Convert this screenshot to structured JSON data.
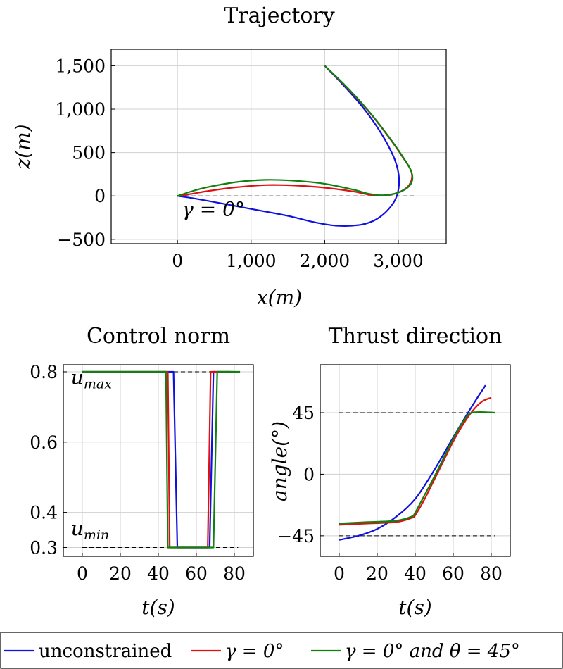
{
  "colors": {
    "unconstrained": "#1010e0",
    "gamma0": "#e01010",
    "gamma0_theta45": "#108010",
    "reference": "#000000"
  },
  "legend": {
    "placement": "bottom",
    "entries": [
      {
        "series": "unconstrained",
        "label": "unconstrained"
      },
      {
        "series": "gamma0",
        "label": "γ = 0°"
      },
      {
        "series": "gamma0_theta45",
        "label": "γ = 0° and θ = 45°"
      }
    ]
  },
  "chart_data": [
    {
      "id": "trajectory",
      "type": "line",
      "title": "Trajectory",
      "xlabel": "x(m)",
      "ylabel": "z(m)",
      "xlim": [
        -900,
        3650
      ],
      "ylim": [
        -550,
        1690
      ],
      "xticks": [
        {
          "v": 0,
          "t": "0"
        },
        {
          "v": 1000,
          "t": "1,000"
        },
        {
          "v": 2000,
          "t": "2,000"
        },
        {
          "v": 3000,
          "t": "3,000"
        }
      ],
      "yticks": [
        {
          "v": -500,
          "t": "−500"
        },
        {
          "v": 0,
          "t": "0"
        },
        {
          "v": 500,
          "t": "500"
        },
        {
          "v": 1000,
          "t": "1,000"
        },
        {
          "v": 1500,
          "t": "1,500"
        }
      ],
      "grid": true,
      "annotations": [
        {
          "text": "γ = 0°",
          "x": 0,
          "y": -230
        }
      ],
      "reference_lines": [
        {
          "x": [
            0,
            3250
          ],
          "y": [
            0,
            0
          ],
          "style": "dashed"
        }
      ],
      "series": [
        {
          "key": "unconstrained",
          "points": [
            [
              2000,
              1500
            ],
            [
              2250,
              1280
            ],
            [
              2500,
              1040
            ],
            [
              2700,
              810
            ],
            [
              2850,
              600
            ],
            [
              2960,
              400
            ],
            [
              3010,
              200
            ],
            [
              2980,
              0
            ],
            [
              2870,
              -150
            ],
            [
              2700,
              -270
            ],
            [
              2500,
              -330
            ],
            [
              2200,
              -345
            ],
            [
              1900,
              -310
            ],
            [
              1500,
              -230
            ],
            [
              1000,
              -150
            ],
            [
              500,
              -70
            ],
            [
              200,
              -25
            ],
            [
              0,
              0
            ]
          ]
        },
        {
          "key": "gamma0",
          "points": [
            [
              2000,
              1500
            ],
            [
              2300,
              1250
            ],
            [
              2600,
              970
            ],
            [
              2850,
              700
            ],
            [
              3050,
              460
            ],
            [
              3180,
              270
            ],
            [
              3150,
              130
            ],
            [
              3000,
              40
            ],
            [
              2800,
              5
            ],
            [
              2600,
              15
            ],
            [
              2400,
              50
            ],
            [
              2000,
              95
            ],
            [
              1600,
              120
            ],
            [
              1200,
              125
            ],
            [
              800,
              100
            ],
            [
              400,
              55
            ],
            [
              200,
              25
            ],
            [
              0,
              0
            ]
          ]
        },
        {
          "key": "gamma0_theta45",
          "points": [
            [
              2000,
              1500
            ],
            [
              2300,
              1255
            ],
            [
              2600,
              975
            ],
            [
              2850,
              705
            ],
            [
              3050,
              465
            ],
            [
              3180,
              275
            ],
            [
              3170,
              140
            ],
            [
              3020,
              45
            ],
            [
              2800,
              8
            ],
            [
              2600,
              25
            ],
            [
              2400,
              70
            ],
            [
              2000,
              140
            ],
            [
              1600,
              175
            ],
            [
              1200,
              185
            ],
            [
              800,
              160
            ],
            [
              400,
              100
            ],
            [
              200,
              55
            ],
            [
              0,
              0
            ]
          ]
        }
      ]
    },
    {
      "id": "control_norm",
      "type": "line",
      "title": "Control norm",
      "xlabel": "t(s)",
      "ylabel": "",
      "xlim": [
        -10,
        90
      ],
      "ylim": [
        0.275,
        0.82
      ],
      "xticks": [
        {
          "v": 0,
          "t": "0"
        },
        {
          "v": 20,
          "t": "20"
        },
        {
          "v": 40,
          "t": "40"
        },
        {
          "v": 60,
          "t": "60"
        },
        {
          "v": 80,
          "t": "80"
        }
      ],
      "yticks": [
        {
          "v": 0.3,
          "t": "0.3"
        },
        {
          "v": 0.4,
          "t": "0.4"
        },
        {
          "v": 0.6,
          "t": "0.6"
        },
        {
          "v": 0.8,
          "t": "0.8"
        }
      ],
      "grid": true,
      "annotations": [
        {
          "text": "u",
          "sub": "max",
          "x": -6,
          "y": 0.765
        },
        {
          "text": "u",
          "sub": "min",
          "x": -6,
          "y": 0.335
        }
      ],
      "reference_lines": [
        {
          "x": [
            0,
            82
          ],
          "y": [
            0.8,
            0.8
          ],
          "style": "dashed"
        },
        {
          "x": [
            0,
            82
          ],
          "y": [
            0.3,
            0.3
          ],
          "style": "dashed"
        }
      ],
      "series": [
        {
          "key": "unconstrained",
          "points": [
            [
              0,
              0.8
            ],
            [
              48,
              0.8
            ],
            [
              50,
              0.3
            ],
            [
              67,
              0.3
            ],
            [
              69,
              0.8
            ],
            [
              78,
              0.8
            ]
          ]
        },
        {
          "key": "gamma0",
          "points": [
            [
              0,
              0.8
            ],
            [
              45,
              0.8
            ],
            [
              46,
              0.3
            ],
            [
              66,
              0.3
            ],
            [
              67.5,
              0.8
            ],
            [
              80,
              0.8
            ]
          ]
        },
        {
          "key": "gamma0_theta45",
          "points": [
            [
              0,
              0.8
            ],
            [
              44,
              0.8
            ],
            [
              45,
              0.3
            ],
            [
              69,
              0.3
            ],
            [
              71,
              0.8
            ],
            [
              83,
              0.8
            ]
          ]
        }
      ]
    },
    {
      "id": "thrust_direction",
      "type": "line",
      "title": "Thrust direction",
      "xlabel": "t(s)",
      "ylabel": "angle(°)",
      "xlim": [
        -10,
        90
      ],
      "ylim": [
        -60,
        80
      ],
      "xticks": [
        {
          "v": 0,
          "t": "0"
        },
        {
          "v": 20,
          "t": "20"
        },
        {
          "v": 40,
          "t": "40"
        },
        {
          "v": 60,
          "t": "60"
        },
        {
          "v": 80,
          "t": "80"
        }
      ],
      "yticks": [
        {
          "v": -45,
          "t": "−45"
        },
        {
          "v": 0,
          "t": "0"
        },
        {
          "v": 45,
          "t": "45"
        }
      ],
      "grid": true,
      "annotations": [],
      "reference_lines": [
        {
          "x": [
            0,
            82
          ],
          "y": [
            45,
            45
          ],
          "style": "dashed"
        },
        {
          "x": [
            0,
            82
          ],
          "y": [
            -45,
            -45
          ],
          "style": "dashed"
        }
      ],
      "series": [
        {
          "key": "unconstrained",
          "points": [
            [
              0,
              -48
            ],
            [
              10,
              -45
            ],
            [
              20,
              -40
            ],
            [
              30,
              -31
            ],
            [
              40,
              -18
            ],
            [
              50,
              3
            ],
            [
              60,
              27
            ],
            [
              70,
              50
            ],
            [
              77,
              65
            ]
          ]
        },
        {
          "key": "gamma0",
          "points": [
            [
              0,
              -37
            ],
            [
              15,
              -36
            ],
            [
              30,
              -35
            ],
            [
              38,
              -32
            ],
            [
              40,
              -30
            ],
            [
              45,
              -18
            ],
            [
              50,
              -4
            ],
            [
              55,
              10
            ],
            [
              60,
              24
            ],
            [
              65,
              36
            ],
            [
              70,
              46
            ],
            [
              75,
              53
            ],
            [
              80,
              56
            ]
          ]
        },
        {
          "key": "gamma0_theta45",
          "points": [
            [
              0,
              -36
            ],
            [
              15,
              -35
            ],
            [
              30,
              -34
            ],
            [
              38,
              -31
            ],
            [
              40,
              -28
            ],
            [
              45,
              -15
            ],
            [
              50,
              -2
            ],
            [
              55,
              12
            ],
            [
              60,
              26
            ],
            [
              65,
              38
            ],
            [
              70,
              45
            ],
            [
              82,
              45
            ]
          ]
        }
      ]
    }
  ]
}
